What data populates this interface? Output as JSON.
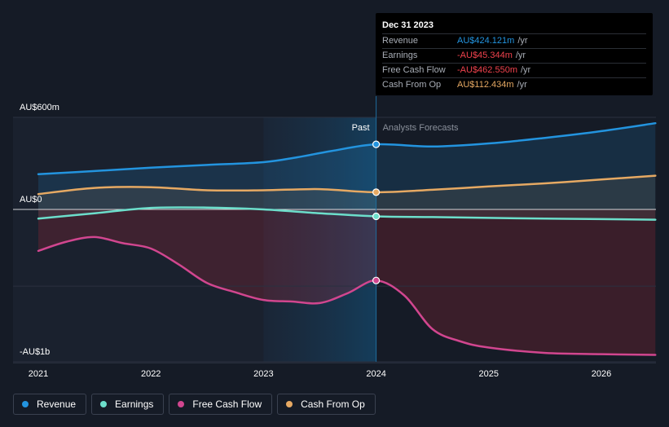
{
  "chart_data": {
    "type": "line",
    "x_ticks": [
      "2021",
      "2022",
      "2023",
      "2024",
      "2025",
      "2026"
    ],
    "y_ticks": [
      {
        "label": "AU$600m",
        "value": 600
      },
      {
        "label": "AU$0",
        "value": 0
      },
      {
        "label": "-AU$1b",
        "value": -1000
      }
    ],
    "xlim": [
      2020.8,
      2026.5
    ],
    "ylim": [
      -1000,
      600
    ],
    "zones": {
      "past_label": "Past",
      "forecast_label": "Analysts Forecasts",
      "divider_x": 2024.0,
      "highlight_start_x": 2023.0
    },
    "series": [
      {
        "name": "Revenue",
        "color": "#2394df",
        "points": [
          [
            2021.0,
            230
          ],
          [
            2021.5,
            250
          ],
          [
            2022.0,
            272
          ],
          [
            2022.5,
            290
          ],
          [
            2023.0,
            308
          ],
          [
            2023.3,
            340
          ],
          [
            2023.6,
            380
          ],
          [
            2024.0,
            424
          ],
          [
            2024.5,
            410
          ],
          [
            2025.0,
            430
          ],
          [
            2025.5,
            466
          ],
          [
            2026.0,
            510
          ],
          [
            2026.48,
            562
          ]
        ]
      },
      {
        "name": "Earnings",
        "color": "#6cdecb",
        "points": [
          [
            2021.0,
            -60
          ],
          [
            2021.5,
            -25
          ],
          [
            2022.0,
            10
          ],
          [
            2022.5,
            12
          ],
          [
            2023.0,
            0
          ],
          [
            2023.5,
            -25
          ],
          [
            2024.0,
            -45
          ],
          [
            2024.5,
            -50
          ],
          [
            2025.0,
            -55
          ],
          [
            2025.5,
            -60
          ],
          [
            2026.0,
            -63
          ],
          [
            2026.48,
            -67
          ]
        ]
      },
      {
        "name": "Free Cash Flow",
        "color": "#d1468f",
        "points": [
          [
            2021.0,
            -270
          ],
          [
            2021.25,
            -210
          ],
          [
            2021.5,
            -180
          ],
          [
            2021.75,
            -220
          ],
          [
            2022.0,
            -255
          ],
          [
            2022.25,
            -360
          ],
          [
            2022.5,
            -480
          ],
          [
            2022.75,
            -540
          ],
          [
            2023.0,
            -590
          ],
          [
            2023.25,
            -600
          ],
          [
            2023.5,
            -610
          ],
          [
            2023.75,
            -545
          ],
          [
            2024.0,
            -463
          ],
          [
            2024.25,
            -560
          ],
          [
            2024.5,
            -780
          ],
          [
            2024.75,
            -860
          ],
          [
            2025.0,
            -900
          ],
          [
            2025.5,
            -935
          ],
          [
            2026.0,
            -943
          ],
          [
            2026.48,
            -948
          ]
        ]
      },
      {
        "name": "Cash From Op",
        "color": "#e6a963",
        "points": [
          [
            2021.0,
            100
          ],
          [
            2021.5,
            140
          ],
          [
            2022.0,
            145
          ],
          [
            2022.5,
            125
          ],
          [
            2023.0,
            125
          ],
          [
            2023.5,
            132
          ],
          [
            2024.0,
            112
          ],
          [
            2024.5,
            128
          ],
          [
            2025.0,
            150
          ],
          [
            2025.5,
            170
          ],
          [
            2026.0,
            195
          ],
          [
            2026.48,
            220
          ]
        ]
      }
    ]
  },
  "tooltip": {
    "date": "Dec 31 2023",
    "rows": [
      {
        "name": "Revenue",
        "value": "AU$424.121m",
        "unit": "/yr",
        "color": "#2394df"
      },
      {
        "name": "Earnings",
        "value": "-AU$45.344m",
        "unit": "/yr",
        "color": "#f0424d"
      },
      {
        "name": "Free Cash Flow",
        "value": "-AU$462.550m",
        "unit": "/yr",
        "color": "#f0424d"
      },
      {
        "name": "Cash From Op",
        "value": "AU$112.434m",
        "unit": "/yr",
        "color": "#e6a963"
      }
    ]
  },
  "legend": [
    {
      "name": "Revenue",
      "color": "#2394df"
    },
    {
      "name": "Earnings",
      "color": "#6cdecb"
    },
    {
      "name": "Free Cash Flow",
      "color": "#d1468f"
    },
    {
      "name": "Cash From Op",
      "color": "#e6a963"
    }
  ]
}
